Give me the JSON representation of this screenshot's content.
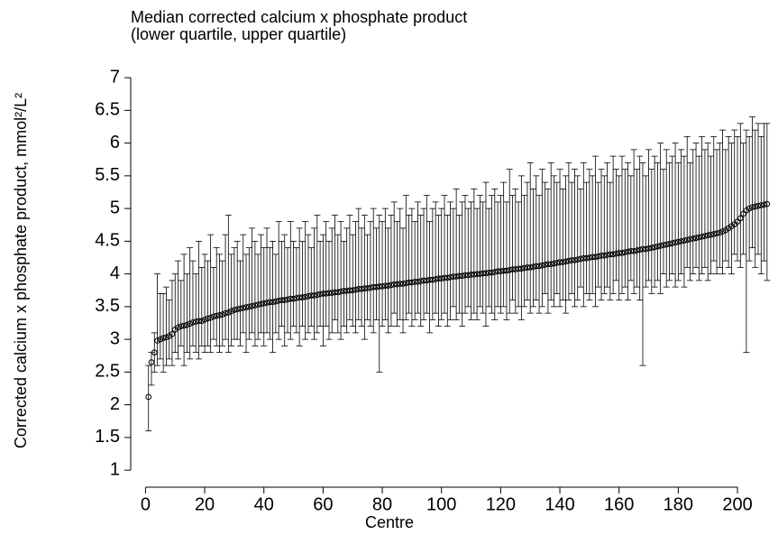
{
  "chart_data": {
    "type": "errorbar",
    "title": "Median corrected calcium x phosphate product",
    "subtitle": "(lower quartile, upper quartile)",
    "x_label": "Centre",
    "y_label": "Corrected calcium x phosphate product, mmol²/L²",
    "xlim": [
      -5,
      213.7
    ],
    "ylim": [
      0.74,
      7.36
    ],
    "xticks": [
      0,
      20,
      40,
      60,
      80,
      100,
      120,
      140,
      160,
      180,
      200
    ],
    "yticks": [
      1,
      1.5,
      2,
      2.5,
      3,
      3.5,
      4,
      4.5,
      5,
      5.5,
      6,
      6.5,
      7
    ],
    "color": "#000000",
    "x": [
      1,
      2,
      3,
      4,
      5,
      6,
      7,
      8,
      9,
      10,
      11,
      12,
      13,
      14,
      15,
      16,
      17,
      18,
      19,
      20,
      21,
      22,
      23,
      24,
      25,
      26,
      27,
      28,
      29,
      30,
      31,
      32,
      33,
      34,
      35,
      36,
      37,
      38,
      39,
      40,
      41,
      42,
      43,
      44,
      45,
      46,
      47,
      48,
      49,
      50,
      51,
      52,
      53,
      54,
      55,
      56,
      57,
      58,
      59,
      60,
      61,
      62,
      63,
      64,
      65,
      66,
      67,
      68,
      69,
      70,
      71,
      72,
      73,
      74,
      75,
      76,
      77,
      78,
      79,
      80,
      81,
      82,
      83,
      84,
      85,
      86,
      87,
      88,
      89,
      90,
      91,
      92,
      93,
      94,
      95,
      96,
      97,
      98,
      99,
      100,
      101,
      102,
      103,
      104,
      105,
      106,
      107,
      108,
      109,
      110,
      111,
      112,
      113,
      114,
      115,
      116,
      117,
      118,
      119,
      120,
      121,
      122,
      123,
      124,
      125,
      126,
      127,
      128,
      129,
      130,
      131,
      132,
      133,
      134,
      135,
      136,
      137,
      138,
      139,
      140,
      141,
      142,
      143,
      144,
      145,
      146,
      147,
      148,
      149,
      150,
      151,
      152,
      153,
      154,
      155,
      156,
      157,
      158,
      159,
      160,
      161,
      162,
      163,
      164,
      165,
      166,
      167,
      168,
      169,
      170,
      171,
      172,
      173,
      174,
      175,
      176,
      177,
      178,
      179,
      180,
      181,
      182,
      183,
      184,
      185,
      186,
      187,
      188,
      189,
      190,
      191,
      192,
      193,
      194,
      195,
      196,
      197,
      198,
      199,
      200,
      201,
      202,
      203,
      204,
      205,
      206,
      207,
      208,
      209,
      210
    ],
    "values": [
      2.12,
      2.65,
      2.8,
      2.98,
      3.0,
      3.02,
      3.03,
      3.05,
      3.08,
      3.15,
      3.18,
      3.2,
      3.21,
      3.22,
      3.24,
      3.26,
      3.27,
      3.28,
      3.28,
      3.3,
      3.32,
      3.33,
      3.35,
      3.36,
      3.37,
      3.38,
      3.4,
      3.41,
      3.43,
      3.45,
      3.46,
      3.47,
      3.48,
      3.49,
      3.5,
      3.51,
      3.52,
      3.53,
      3.54,
      3.55,
      3.56,
      3.57,
      3.57,
      3.58,
      3.59,
      3.6,
      3.6,
      3.61,
      3.62,
      3.62,
      3.63,
      3.64,
      3.64,
      3.65,
      3.66,
      3.67,
      3.67,
      3.68,
      3.69,
      3.7,
      3.7,
      3.71,
      3.71,
      3.72,
      3.72,
      3.73,
      3.74,
      3.74,
      3.75,
      3.75,
      3.76,
      3.77,
      3.77,
      3.78,
      3.78,
      3.79,
      3.8,
      3.8,
      3.81,
      3.81,
      3.82,
      3.82,
      3.83,
      3.84,
      3.84,
      3.85,
      3.85,
      3.86,
      3.87,
      3.87,
      3.88,
      3.88,
      3.89,
      3.9,
      3.9,
      3.91,
      3.91,
      3.92,
      3.93,
      3.93,
      3.94,
      3.94,
      3.95,
      3.96,
      3.96,
      3.97,
      3.97,
      3.98,
      3.98,
      3.99,
      3.99,
      4.0,
      4.0,
      4.01,
      4.01,
      4.02,
      4.02,
      4.03,
      4.04,
      4.04,
      4.05,
      4.05,
      4.06,
      4.07,
      4.07,
      4.08,
      4.08,
      4.09,
      4.1,
      4.1,
      4.11,
      4.12,
      4.12,
      4.13,
      4.14,
      4.15,
      4.15,
      4.16,
      4.17,
      4.18,
      4.18,
      4.19,
      4.2,
      4.21,
      4.21,
      4.22,
      4.23,
      4.24,
      4.24,
      4.25,
      4.26,
      4.26,
      4.27,
      4.28,
      4.28,
      4.29,
      4.3,
      4.3,
      4.31,
      4.32,
      4.32,
      4.33,
      4.34,
      4.35,
      4.35,
      4.36,
      4.37,
      4.38,
      4.38,
      4.39,
      4.4,
      4.41,
      4.42,
      4.43,
      4.44,
      4.45,
      4.46,
      4.47,
      4.48,
      4.49,
      4.5,
      4.51,
      4.52,
      4.53,
      4.54,
      4.55,
      4.56,
      4.57,
      4.58,
      4.59,
      4.6,
      4.61,
      4.62,
      4.63,
      4.65,
      4.67,
      4.7,
      4.73,
      4.76,
      4.8,
      4.85,
      4.92,
      4.97,
      5.0,
      5.02,
      5.03,
      5.04,
      5.05,
      5.06,
      5.07
    ],
    "lower": [
      1.6,
      2.3,
      2.5,
      2.6,
      2.7,
      2.5,
      2.6,
      2.7,
      2.6,
      2.8,
      2.7,
      2.9,
      2.6,
      2.8,
      2.7,
      2.9,
      2.8,
      2.7,
      2.9,
      2.8,
      2.9,
      2.8,
      3.0,
      2.9,
      2.8,
      2.9,
      3.0,
      2.8,
      2.9,
      3.0,
      3.0,
      2.9,
      3.1,
      2.8,
      3.0,
      3.1,
      2.9,
      3.0,
      3.1,
      2.9,
      3.1,
      3.0,
      2.8,
      3.1,
      3.0,
      3.2,
      2.9,
      3.1,
      3.0,
      3.2,
      3.1,
      2.9,
      3.2,
      3.0,
      3.1,
      3.2,
      3.0,
      3.1,
      3.2,
      2.9,
      3.2,
      3.0,
      3.1,
      3.3,
      3.1,
      3.0,
      3.2,
      3.1,
      3.3,
      3.2,
      3.1,
      3.3,
      3.2,
      3.0,
      3.3,
      3.2,
      3.1,
      3.3,
      2.5,
      3.2,
      3.3,
      3.1,
      3.2,
      3.4,
      3.2,
      3.3,
      3.1,
      3.3,
      3.4,
      3.2,
      3.3,
      3.4,
      3.2,
      3.3,
      3.4,
      3.1,
      3.3,
      3.4,
      3.2,
      3.3,
      3.4,
      3.2,
      3.3,
      3.5,
      3.3,
      3.4,
      3.2,
      3.4,
      3.5,
      3.3,
      3.4,
      3.3,
      3.5,
      3.4,
      3.2,
      3.5,
      3.4,
      3.3,
      3.5,
      3.4,
      3.5,
      3.3,
      3.4,
      3.6,
      3.4,
      3.5,
      3.3,
      3.5,
      3.6,
      3.4,
      3.5,
      3.6,
      3.4,
      3.5,
      3.7,
      3.4,
      3.6,
      3.5,
      3.7,
      3.5,
      3.6,
      3.4,
      3.6,
      3.7,
      3.5,
      3.6,
      3.8,
      3.5,
      3.7,
      3.6,
      3.7,
      3.5,
      3.8,
      3.6,
      3.7,
      3.8,
      3.6,
      3.7,
      3.9,
      3.6,
      3.7,
      3.8,
      3.6,
      3.9,
      3.7,
      3.8,
      3.6,
      2.6,
      3.8,
      3.9,
      3.7,
      3.8,
      3.9,
      3.7,
      4.0,
      3.8,
      3.9,
      4.0,
      3.8,
      3.9,
      4.0,
      3.8,
      4.1,
      3.9,
      4.0,
      4.1,
      3.9,
      4.0,
      4.1,
      3.9,
      4.0,
      4.2,
      4.0,
      4.1,
      4.0,
      4.2,
      4.1,
      4.0,
      4.3,
      4.2,
      4.1,
      4.3,
      2.8,
      4.2,
      4.4,
      4.1,
      4.3,
      4.0,
      4.2,
      3.9
    ],
    "upper": [
      2.6,
      2.8,
      3.1,
      4.0,
      3.7,
      3.7,
      3.8,
      3.6,
      3.9,
      4.0,
      4.2,
      3.9,
      4.3,
      4.0,
      4.4,
      4.2,
      4.0,
      4.5,
      4.1,
      4.3,
      4.2,
      4.6,
      4.1,
      4.4,
      4.3,
      4.2,
      4.6,
      4.9,
      4.3,
      4.4,
      4.5,
      4.2,
      4.6,
      4.3,
      4.4,
      4.7,
      4.5,
      4.3,
      4.6,
      4.4,
      4.7,
      4.4,
      4.5,
      4.3,
      4.8,
      4.5,
      4.6,
      4.4,
      4.8,
      4.5,
      4.4,
      4.7,
      4.5,
      4.8,
      4.6,
      4.4,
      4.7,
      4.9,
      4.5,
      4.6,
      4.8,
      4.5,
      4.7,
      4.9,
      4.6,
      4.8,
      4.5,
      4.7,
      4.9,
      4.6,
      4.8,
      5.0,
      4.7,
      4.9,
      4.6,
      4.8,
      5.0,
      4.7,
      4.9,
      4.8,
      5.0,
      4.7,
      4.9,
      5.1,
      4.8,
      5.0,
      4.7,
      5.2,
      4.9,
      5.0,
      4.8,
      5.1,
      4.9,
      5.0,
      5.2,
      4.8,
      5.0,
      5.1,
      4.9,
      5.0,
      5.2,
      4.9,
      5.1,
      5.0,
      5.3,
      4.9,
      5.1,
      5.2,
      5.0,
      5.1,
      5.3,
      5.0,
      5.2,
      5.1,
      5.4,
      5.0,
      5.2,
      5.3,
      5.1,
      5.2,
      5.4,
      5.1,
      5.6,
      5.2,
      5.3,
      5.1,
      5.5,
      5.2,
      5.4,
      5.7,
      5.3,
      5.5,
      5.2,
      5.6,
      5.4,
      5.3,
      5.7,
      5.5,
      5.4,
      5.6,
      5.3,
      5.5,
      5.7,
      5.4,
      5.6,
      5.5,
      5.3,
      5.7,
      5.4,
      5.6,
      5.5,
      5.8,
      5.4,
      5.6,
      5.5,
      5.7,
      5.4,
      5.8,
      5.6,
      5.5,
      5.8,
      5.6,
      5.7,
      5.5,
      5.9,
      5.6,
      5.8,
      5.7,
      5.5,
      5.9,
      5.6,
      5.8,
      5.7,
      6.0,
      5.6,
      5.9,
      5.7,
      5.8,
      6.0,
      5.7,
      5.9,
      5.8,
      6.1,
      5.7,
      5.9,
      6.0,
      5.8,
      6.1,
      5.9,
      6.0,
      5.8,
      6.1,
      5.9,
      6.0,
      6.2,
      5.9,
      6.1,
      6.0,
      6.2,
      6.1,
      6.3,
      6.0,
      6.2,
      6.1,
      6.4,
      6.2,
      6.3,
      6.1,
      6.3,
      6.3
    ]
  }
}
